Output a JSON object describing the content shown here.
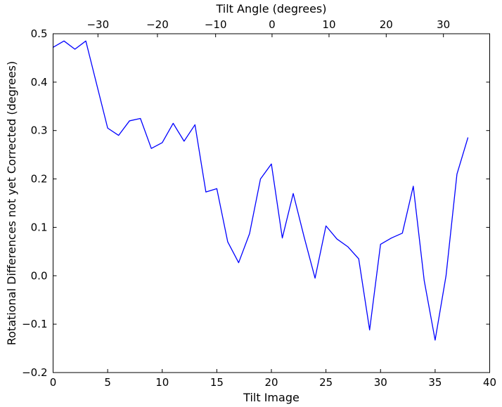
{
  "figure": {
    "background": "#ffffff",
    "frame_color": "#000000",
    "tick_color": "#000000"
  },
  "chart_data": {
    "type": "line",
    "title": "Tilt Angle (degrees)",
    "xlabel": "Tilt Image",
    "ylabel": "Rotational Differences not yet Corrected (degrees)",
    "xlim": [
      0,
      40
    ],
    "ylim": [
      -0.2,
      0.5
    ],
    "grid": false,
    "legend": null,
    "line_color": "#0000ff",
    "x": [
      0,
      1,
      2,
      3,
      4,
      5,
      6,
      7,
      8,
      9,
      10,
      11,
      12,
      13,
      14,
      15,
      16,
      17,
      18,
      19,
      20,
      21,
      22,
      23,
      24,
      25,
      26,
      27,
      28,
      29,
      30,
      31,
      32,
      33,
      34,
      35,
      36,
      37,
      38
    ],
    "y": [
      0.472,
      0.485,
      0.468,
      0.485,
      0.395,
      0.305,
      0.29,
      0.32,
      0.325,
      0.263,
      0.275,
      0.315,
      0.278,
      0.312,
      0.173,
      0.18,
      0.07,
      0.027,
      0.087,
      0.2,
      0.231,
      0.078,
      0.17,
      0.08,
      -0.005,
      0.103,
      0.076,
      0.06,
      0.035,
      -0.112,
      0.065,
      0.078,
      0.088,
      0.185,
      -0.01,
      -0.133,
      0.0,
      0.21,
      0.285
    ],
    "x_ticks": [
      {
        "label": "0",
        "value": 0
      },
      {
        "label": "5",
        "value": 5
      },
      {
        "label": "10",
        "value": 10
      },
      {
        "label": "15",
        "value": 15
      },
      {
        "label": "20",
        "value": 20
      },
      {
        "label": "25",
        "value": 25
      },
      {
        "label": "30",
        "value": 30
      },
      {
        "label": "35",
        "value": 35
      },
      {
        "label": "40",
        "value": 40
      }
    ],
    "y_ticks": [
      {
        "label": "0.5",
        "value": 0.5
      },
      {
        "label": "0.4",
        "value": 0.4
      },
      {
        "label": "0.3",
        "value": 0.3
      },
      {
        "label": "0.2",
        "value": 0.2
      },
      {
        "label": "0.1",
        "value": 0.1
      },
      {
        "label": "0.0",
        "value": 0.0
      },
      {
        "label": "−0.1",
        "value": -0.1
      },
      {
        "label": "−0.2",
        "value": -0.2
      }
    ],
    "top_axis": {
      "label": "Tilt Angle (degrees)",
      "ticks": [
        {
          "label": "−30",
          "value": 4.11
        },
        {
          "label": "−20",
          "value": 9.56
        },
        {
          "label": "−10",
          "value": 14.89
        },
        {
          "label": "0",
          "value": 20.06
        },
        {
          "label": "10",
          "value": 25.28
        },
        {
          "label": "20",
          "value": 30.52
        },
        {
          "label": "30",
          "value": 35.76
        }
      ]
    }
  }
}
